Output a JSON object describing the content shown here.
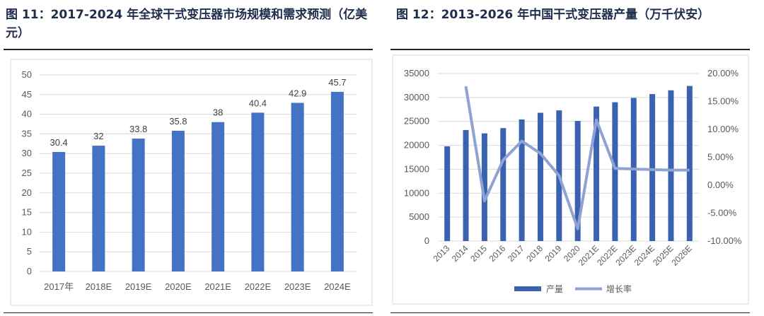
{
  "chart_data": [
    {
      "type": "bar",
      "title": "图 11：2017-2024 年全球干式变压器市场规模和需求预测（亿美元）",
      "categories": [
        "2017年",
        "2018E",
        "2019E",
        "2020E",
        "2021E",
        "2022E",
        "2023E",
        "2024E"
      ],
      "values": [
        30.4,
        32,
        33.8,
        35.8,
        38,
        40.4,
        42.9,
        45.7
      ],
      "data_labels": [
        "30.4",
        "32",
        "33.8",
        "35.8",
        "38",
        "40.4",
        "42.9",
        "45.7"
      ],
      "ylim": [
        0,
        50
      ],
      "yticks": [
        0,
        5,
        10,
        15,
        20,
        25,
        30,
        35,
        40,
        45,
        50
      ],
      "grid": true,
      "bar_color": "#4472c4"
    },
    {
      "type": "bar+line",
      "title": "图 12：2013-2026 年中国干式变压器产量（万千伏安）",
      "categories": [
        "2013",
        "2014",
        "2015",
        "2016",
        "2017",
        "2018",
        "2019",
        "2020",
        "2021E",
        "2022E",
        "2023E",
        "2024E",
        "2025E",
        "2026E"
      ],
      "series": [
        {
          "name": "产量",
          "type": "bar",
          "axis": "left",
          "color": "#3a62b0",
          "values": [
            19800,
            23200,
            22500,
            23600,
            25400,
            26800,
            27300,
            25100,
            28100,
            29000,
            29900,
            30700,
            31500,
            32400
          ]
        },
        {
          "name": "增长率",
          "type": "line",
          "axis": "right",
          "color": "#8fa2d4",
          "values": [
            null,
            17.7,
            -2.8,
            4.5,
            7.9,
            5.7,
            1.7,
            -7.8,
            11.7,
            3.0,
            2.9,
            2.8,
            2.7,
            2.7
          ]
        }
      ],
      "ylim_left": [
        0,
        35000
      ],
      "yticks_left": [
        "0",
        "5000",
        "10000",
        "15000",
        "20000",
        "25000",
        "30000",
        "35000"
      ],
      "ylim_right": [
        -10,
        20
      ],
      "yticks_right": [
        "-10.00%",
        "-5.00%",
        "0.00%",
        "5.00%",
        "10.00%",
        "15.00%",
        "20.00%"
      ],
      "legend": "bottom",
      "grid": true
    }
  ]
}
